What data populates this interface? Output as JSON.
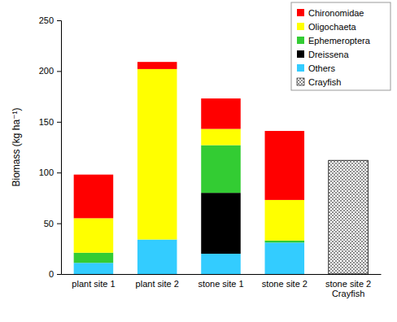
{
  "chart_data": {
    "type": "bar",
    "stacked": true,
    "grid": false,
    "legend": "upper right",
    "y_label": "Biomass (kg ha⁻¹)",
    "categories": [
      "plant site 1",
      "plant site 2",
      "stone site 1",
      "stone site 2",
      "stone site 2\nCrayfish"
    ],
    "ylim": [
      0,
      250
    ],
    "yticks": [
      0,
      50,
      100,
      150,
      200,
      250
    ],
    "series": [
      {
        "name": "Chironomidae",
        "color": "#ff0000",
        "values": [
          43,
          7,
          30,
          68,
          null
        ]
      },
      {
        "name": "Oligochaeta",
        "color": "#ffff00",
        "values": [
          34,
          168,
          16,
          40,
          null
        ]
      },
      {
        "name": "Ephemeroptera",
        "color": "#33cc33",
        "values": [
          10,
          null,
          47,
          2,
          null
        ]
      },
      {
        "name": "Dreissena",
        "color": "#000000",
        "values": [
          null,
          null,
          60,
          null,
          null
        ]
      },
      {
        "name": "Others",
        "color": "#33ccff",
        "values": [
          11,
          34,
          20,
          31,
          null
        ]
      },
      {
        "name": "Crayfish",
        "color": "#000000",
        "line_style": "dotted",
        "values": [
          null,
          null,
          null,
          null,
          112
        ]
      }
    ]
  }
}
